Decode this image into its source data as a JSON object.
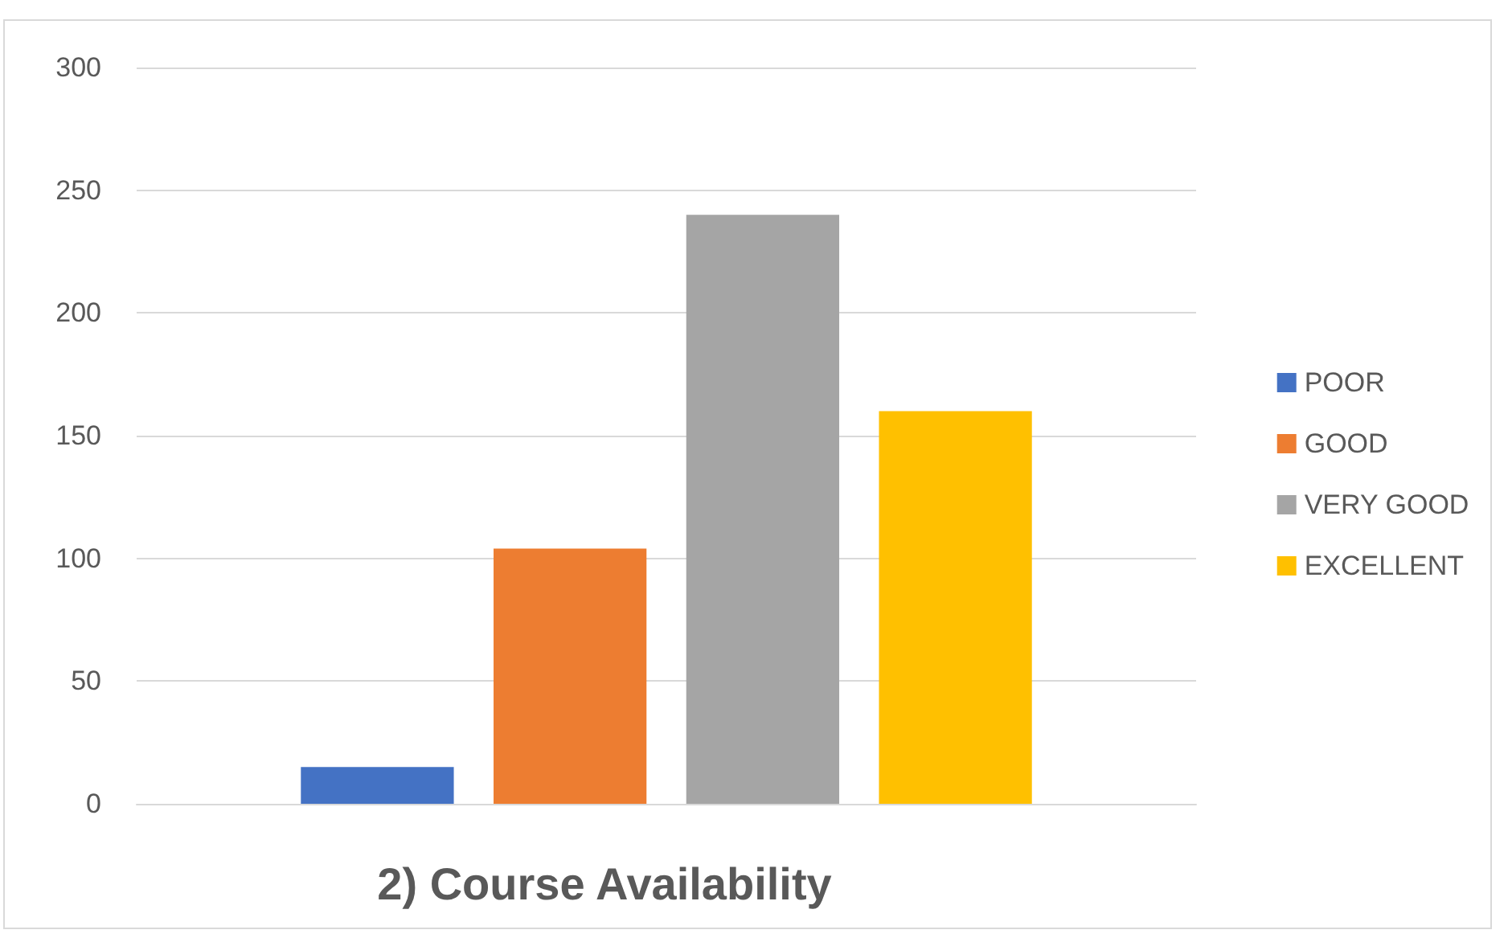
{
  "chart_data": {
    "type": "bar",
    "title": "2) Course Availability",
    "categories": [
      null
    ],
    "series": [
      {
        "name": "POOR",
        "color": "#4472c4",
        "values": [
          15
        ]
      },
      {
        "name": "GOOD",
        "color": "#ed7d31",
        "values": [
          104
        ]
      },
      {
        "name": "VERY GOOD",
        "color": "#a5a5a5",
        "values": [
          240
        ]
      },
      {
        "name": "EXCELLENT",
        "color": "#ffc000",
        "values": [
          160
        ]
      }
    ],
    "ylim": [
      0,
      300
    ],
    "yticks": [
      0,
      50,
      100,
      150,
      200,
      250,
      300
    ],
    "grid": "y",
    "legend": "right"
  }
}
